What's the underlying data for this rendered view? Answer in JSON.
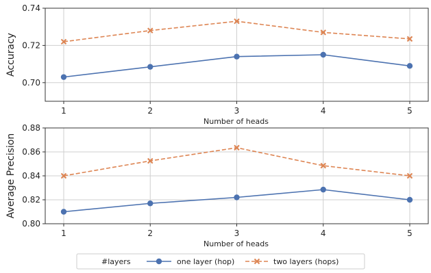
{
  "chart_data": [
    {
      "type": "line",
      "xlabel": "Number of heads",
      "ylabel": "Accuracy",
      "x": [
        1,
        2,
        3,
        4,
        5
      ],
      "xticks": [
        "1",
        "2",
        "3",
        "4",
        "5"
      ],
      "ylim": [
        0.69,
        0.74
      ],
      "yticks": [
        "0.70",
        "0.72",
        "0.74"
      ],
      "ytick_values": [
        0.7,
        0.72,
        0.74
      ],
      "grid": true,
      "series": [
        {
          "name": "one layer (hop)",
          "values": [
            0.703,
            0.7085,
            0.714,
            0.715,
            0.709
          ],
          "color": "#4c72b0",
          "marker": "circle",
          "dashed": false
        },
        {
          "name": "two layers (hops)",
          "values": [
            0.722,
            0.728,
            0.733,
            0.727,
            0.7235
          ],
          "color": "#dd8452",
          "marker": "x",
          "dashed": true
        }
      ]
    },
    {
      "type": "line",
      "xlabel": "Number of heads",
      "ylabel": "Average Precision",
      "x": [
        1,
        2,
        3,
        4,
        5
      ],
      "xticks": [
        "1",
        "2",
        "3",
        "4",
        "5"
      ],
      "ylim": [
        0.8,
        0.88
      ],
      "yticks": [
        "0.80",
        "0.82",
        "0.84",
        "0.86",
        "0.88"
      ],
      "ytick_values": [
        0.8,
        0.82,
        0.84,
        0.86,
        0.88
      ],
      "grid": true,
      "series": [
        {
          "name": "one layer (hop)",
          "values": [
            0.81,
            0.817,
            0.822,
            0.8285,
            0.82
          ],
          "color": "#4c72b0",
          "marker": "circle",
          "dashed": false
        },
        {
          "name": "two layers (hops)",
          "values": [
            0.84,
            0.8525,
            0.8635,
            0.8485,
            0.84
          ],
          "color": "#dd8452",
          "marker": "x",
          "dashed": true
        }
      ]
    }
  ],
  "legend": {
    "title": "#layers",
    "placement": "bottom-center",
    "entries": [
      "one layer (hop)",
      "two layers (hops)"
    ]
  }
}
